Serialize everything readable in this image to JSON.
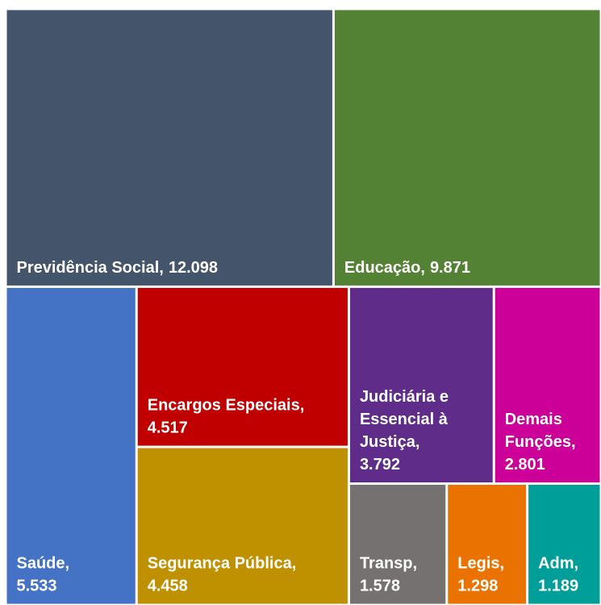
{
  "chart_data": {
    "type": "treemap",
    "categories": [
      "Previdência Social,",
      "Educação,",
      "Saúde,",
      "Encargos Especiais,",
      "Segurança Pública,",
      "Judiciária e Essencial à Justiça,",
      "Demais Funções,",
      "Transp,",
      "Legis,",
      "Adm,"
    ],
    "values": [
      12098,
      9871,
      5533,
      4517,
      4458,
      3792,
      2801,
      1578,
      1298,
      1189
    ],
    "value_labels": [
      "12.098",
      "9.871",
      "5.533",
      "4.517",
      "4.458",
      "3.792",
      "2.801",
      "1.578",
      "1.298",
      "1.189"
    ],
    "colors": [
      "#44546a",
      "#548235",
      "#4472c4",
      "#c00000",
      "#bf9000",
      "#5f2c8a",
      "#cc0099",
      "#767171",
      "#e97200",
      "#009e99"
    ]
  }
}
